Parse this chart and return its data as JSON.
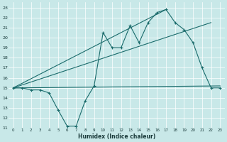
{
  "bg_color": "#c8e8e8",
  "grid_color": "#ffffff",
  "line_color": "#1a6b6b",
  "xlabel": "Humidex (Indice chaleur)",
  "ylim": [
    11,
    23.5
  ],
  "xlim": [
    -0.5,
    23.5
  ],
  "yticks": [
    11,
    12,
    13,
    14,
    15,
    16,
    17,
    18,
    19,
    20,
    21,
    22,
    23
  ],
  "xticks": [
    0,
    1,
    2,
    3,
    4,
    5,
    6,
    7,
    8,
    9,
    10,
    11,
    12,
    13,
    14,
    15,
    16,
    17,
    18,
    19,
    20,
    21,
    22,
    23
  ],
  "series1_x": [
    0,
    1,
    2,
    3,
    4,
    5,
    6,
    7,
    8,
    9,
    10,
    11,
    12,
    13,
    14,
    15,
    16,
    17,
    18,
    19,
    20,
    21,
    22,
    23
  ],
  "series1_y": [
    15,
    15,
    14.8,
    14.8,
    14.5,
    12.8,
    11.2,
    11.2,
    13.7,
    15.2,
    20.5,
    19.0,
    19.0,
    21.2,
    19.5,
    21.5,
    22.5,
    22.8,
    21.5,
    20.8,
    19.5,
    17.0,
    15.0,
    15.0
  ],
  "series2_x": [
    0,
    22
  ],
  "series2_y": [
    15,
    21.5
  ],
  "series3_x": [
    0,
    23
  ],
  "series3_y": [
    15,
    15.2
  ],
  "line4_x": [
    0,
    17
  ],
  "line4_y": [
    15,
    22.8
  ]
}
